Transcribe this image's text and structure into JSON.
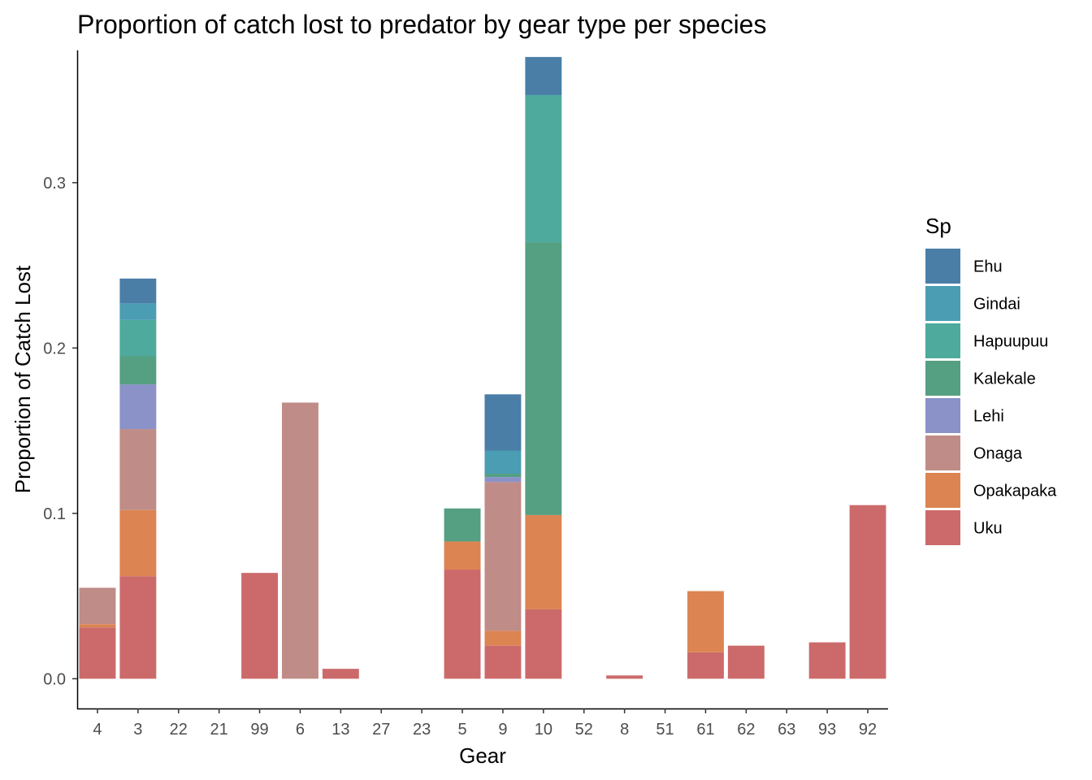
{
  "chart_data": {
    "type": "bar",
    "stacked": true,
    "title": "Proportion of catch lost to predator by gear type per species",
    "xlabel": "Gear",
    "ylabel": "Proportion of Catch Lost",
    "ylim": [
      -0.018,
      0.38
    ],
    "yticks": [
      0.0,
      0.1,
      0.2,
      0.3
    ],
    "ytick_labels": [
      "0.0",
      "0.1",
      "0.2",
      "0.3"
    ],
    "grid": false,
    "categories": [
      "4",
      "3",
      "22",
      "21",
      "99",
      "6",
      "13",
      "27",
      "23",
      "5",
      "9",
      "10",
      "52",
      "8",
      "51",
      "61",
      "62",
      "63",
      "93",
      "92"
    ],
    "legend": {
      "title": "Sp",
      "position": "right"
    },
    "series": [
      {
        "name": "Uku",
        "color": "#CC6A6B",
        "values": [
          0.031,
          0.062,
          0,
          0,
          0.064,
          0,
          0.006,
          0,
          0,
          0.066,
          0.02,
          0.042,
          0,
          0.002,
          0,
          0.016,
          0.02,
          0,
          0.022,
          0.105
        ]
      },
      {
        "name": "Opakapaka",
        "color": "#DC8452",
        "values": [
          0.002,
          0.04,
          0,
          0,
          0,
          0,
          0,
          0,
          0,
          0.017,
          0.009,
          0.057,
          0,
          0,
          0,
          0.037,
          0,
          0,
          0,
          0
        ]
      },
      {
        "name": "Onaga",
        "color": "#BF8C87",
        "values": [
          0.022,
          0.049,
          0,
          0,
          0,
          0.167,
          0,
          0,
          0,
          0,
          0.09,
          0,
          0,
          0,
          0,
          0,
          0,
          0,
          0,
          0
        ]
      },
      {
        "name": "Lehi",
        "color": "#8A92C8",
        "values": [
          0,
          0.027,
          0,
          0,
          0,
          0,
          0,
          0,
          0,
          0,
          0.003,
          0,
          0,
          0,
          0,
          0,
          0,
          0,
          0,
          0
        ]
      },
      {
        "name": "Kalekale",
        "color": "#559F82",
        "values": [
          0,
          0.017,
          0,
          0,
          0,
          0,
          0,
          0,
          0,
          0.02,
          0.002,
          0.165,
          0,
          0,
          0,
          0,
          0,
          0,
          0,
          0
        ]
      },
      {
        "name": "Hapuupuu",
        "color": "#4DAA9C",
        "values": [
          0,
          0.022,
          0,
          0,
          0,
          0,
          0,
          0,
          0,
          0,
          0,
          0.089,
          0,
          0,
          0,
          0,
          0,
          0,
          0,
          0
        ]
      },
      {
        "name": "Gindai",
        "color": "#4A9DB3",
        "values": [
          0,
          0.01,
          0,
          0,
          0,
          0,
          0,
          0,
          0,
          0,
          0.014,
          0,
          0,
          0,
          0,
          0,
          0,
          0,
          0,
          0
        ]
      },
      {
        "name": "Ehu",
        "color": "#4A7EA7",
        "values": [
          0,
          0.015,
          0,
          0,
          0,
          0,
          0,
          0,
          0,
          0,
          0.034,
          0.023,
          0,
          0,
          0,
          0,
          0,
          0,
          0,
          0
        ]
      }
    ]
  }
}
